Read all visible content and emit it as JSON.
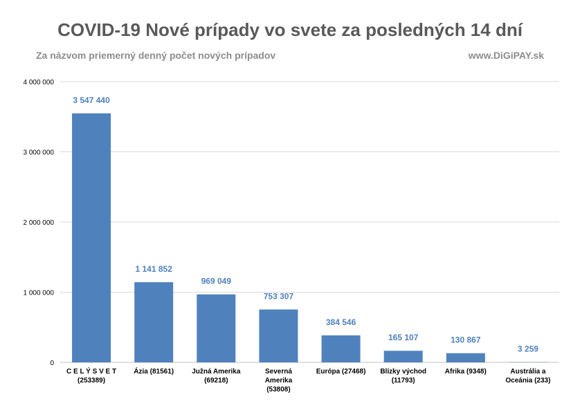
{
  "header": {
    "title": "COVID-19 Nové prípady vo svete za posledných 14 dní",
    "subtitle": "Za názvom priemerný denný počet nových prípadov",
    "website": "www.DiGiPAY.sk"
  },
  "colors": {
    "bar": "#4f81bd",
    "data_label": "#4e81bd",
    "grid": "#d9d9d9",
    "title": "#595959",
    "subtitle": "#8c8c8c"
  },
  "chart_data": {
    "type": "bar",
    "categories": [
      [
        "C E L Ý   S V E T",
        "(253389)"
      ],
      [
        "Ázia (81561)"
      ],
      [
        "Južná Amerika",
        "(69218)"
      ],
      [
        "Severná",
        "Amerika",
        "(53808)"
      ],
      [
        "Európa (27468)"
      ],
      [
        "Blízky východ",
        "(11793)"
      ],
      [
        "Afrika (9348)"
      ],
      [
        "Austrália a",
        "Oceánia (233)"
      ]
    ],
    "values": [
      3547440,
      1141852,
      969049,
      753307,
      384546,
      165107,
      130867,
      3259
    ],
    "value_labels": [
      "3 547 440",
      "1 141 852",
      "969 049",
      "753 307",
      "384 546",
      "165 107",
      "130 867",
      "3 259"
    ],
    "ylim": [
      0,
      4000000
    ],
    "yticks": [
      0,
      1000000,
      2000000,
      3000000,
      4000000
    ],
    "ytick_labels": [
      "0",
      "1 000 000",
      "2 000 000",
      "3 000 000",
      "4 000 000"
    ],
    "grid": true,
    "legend": "none"
  }
}
